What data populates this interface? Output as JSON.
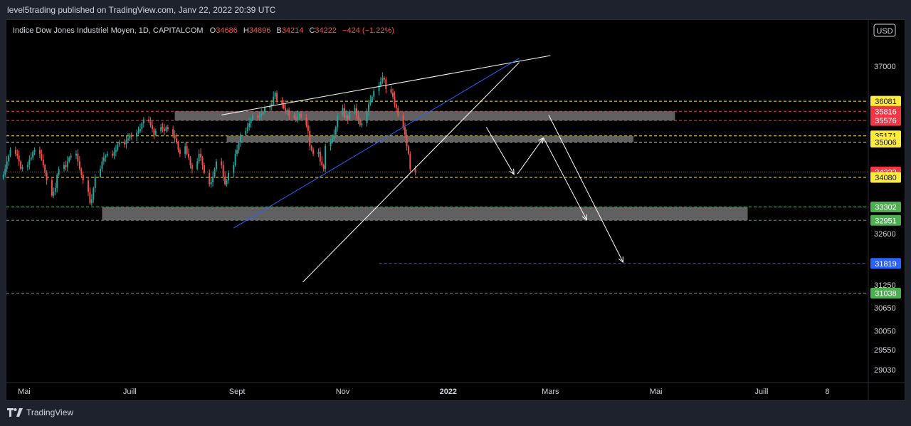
{
  "header": {
    "published": "level5trading published on TradingView.com, Janv 22, 2022 20:39 UTC"
  },
  "footer": {
    "brand": "TradingView",
    "logo_icon": "tradingview-logo-icon"
  },
  "colors": {
    "up": "#26a69a",
    "down": "#ef5350",
    "yellow": "#ffeb3b",
    "red": "#f23645",
    "green": "#4caf50",
    "blue": "#2962ff",
    "zone": "#808080"
  },
  "chart_data": {
    "type": "candlestick",
    "symbol": "Indice Dow Jones Industriel Moyen, 1D, CAPITALCOM",
    "ohlc": {
      "O": "34686",
      "H": "34896",
      "B": "34214",
      "C": "34222",
      "change": "−424 (−1.22%)"
    },
    "currency": "USD",
    "y_ticks": [
      "37000",
      "32600",
      "31250",
      "30650",
      "30050",
      "29550",
      "29030"
    ],
    "y_ticks_values": [
      37000,
      32600,
      31250,
      30650,
      30050,
      29550,
      29030
    ],
    "x_ticks": [
      "Mai",
      "Juill",
      "Sept",
      "Nov",
      "2022",
      "Mars",
      "Mai",
      "Juill",
      "8"
    ],
    "x_tick_dates": [
      "2021-05-01",
      "2021-07-01",
      "2021-09-01",
      "2021-11-01",
      "2022-01-01",
      "2022-03-01",
      "2022-05-01",
      "2022-07-01",
      "2022-08-08"
    ],
    "price_levels": [
      {
        "label": "36081",
        "value": 36081,
        "style": "dashed",
        "color": "#ffeb3b",
        "badge": "#ffeb3b",
        "start": "2021-04-01"
      },
      {
        "label": "35816",
        "value": 35816,
        "style": "dashed",
        "color": "#f23645",
        "badge": "#f23645",
        "start": "2021-04-01"
      },
      {
        "label": "35576",
        "value": 35576,
        "style": "dashed",
        "color": "#f23645",
        "badge": "#f23645",
        "start": "2021-04-01"
      },
      {
        "label": "35171",
        "value": 35171,
        "style": "dashed",
        "color": "#ffeb3b",
        "badge": "#ffeb3b",
        "start": "2021-04-01"
      },
      {
        "label": "35006",
        "value": 35006,
        "style": "dashed",
        "color": "#ffeb3b",
        "badge": "#ffeb3b",
        "start": "2021-04-01"
      },
      {
        "label": "34222",
        "value": 34222,
        "style": "dotted",
        "color": "#f23645",
        "badge": "#f23645",
        "start": "2021-04-01"
      },
      {
        "label": "34080",
        "value": 34080,
        "style": "dashed",
        "color": "#ffeb3b",
        "badge": "#ffeb3b",
        "start": "2021-04-01"
      },
      {
        "label": "33302",
        "value": 33302,
        "style": "dashed",
        "color": "#4caf50",
        "badge": "#4caf50",
        "start": "2021-04-01"
      },
      {
        "label": "32951",
        "value": 32951,
        "style": "dashed",
        "color": "#4caf50",
        "badge": "#4caf50",
        "start": "2021-04-01"
      },
      {
        "label": "31819",
        "value": 31819,
        "style": "dashed",
        "color": "#2962ff",
        "badge": "#2962ff",
        "start": "2021-11-22"
      },
      {
        "label": "31038",
        "value": 31038,
        "style": "dashed",
        "color": "#4caf50",
        "badge": "#4caf50",
        "start": "2021-04-01"
      }
    ],
    "zones": [
      {
        "from": "2021-07-27",
        "to": "2022-05-12",
        "low": 35576,
        "high": 35816
      },
      {
        "from": "2021-08-26",
        "to": "2022-04-18",
        "low": 35006,
        "high": 35171
      },
      {
        "from": "2021-06-15",
        "to": "2022-06-23",
        "low": 32951,
        "high": 33302
      }
    ],
    "trendlines": [
      {
        "color": "#ffffff",
        "points": [
          [
            "2021-08-23",
            35720
          ],
          [
            "2022-03-01",
            37280
          ]
        ]
      },
      {
        "color": "#2962ff",
        "points": [
          [
            "2021-08-30",
            32750
          ],
          [
            "2022-02-11",
            37210
          ]
        ]
      },
      {
        "color": "#ffffff",
        "points": [
          [
            "2021-10-09",
            31330
          ],
          [
            "2022-02-11",
            37100
          ]
        ]
      }
    ],
    "arrows": [
      [
        [
          "2022-01-23",
          35400
        ],
        [
          "2022-02-08",
          34160
        ]
      ],
      [
        [
          "2022-02-10",
          34170
        ],
        [
          "2022-02-25",
          35120
        ]
      ],
      [
        [
          "2022-02-25",
          35120
        ],
        [
          "2022-03-22",
          32960
        ]
      ],
      [
        [
          "2022-02-28",
          35720
        ],
        [
          "2022-04-12",
          31850
        ]
      ]
    ],
    "candles_start": "2021-04-01",
    "closes": [
      34200,
      34040,
      33900,
      33800,
      33900,
      34000,
      34100,
      34150,
      33950,
      33900,
      33850,
      34050,
      34150,
      34300,
      34500,
      34650,
      34800,
      34700,
      34650,
      34500,
      34300,
      34350,
      34400,
      34550,
      34600,
      34750,
      34800,
      34700,
      34550,
      34400,
      34200,
      34000,
      33600,
      33700,
      33800,
      34150,
      34300,
      34400,
      34350,
      34500,
      34600,
      34650,
      34700,
      34500,
      34300,
      34150,
      34000,
      33700,
      33400,
      33500,
      33800,
      34100,
      34300,
      34500,
      34600,
      34650,
      34700,
      34650,
      34750,
      34800,
      34950,
      35000,
      34950,
      35050,
      35100,
      35200,
      35150,
      35250,
      35300,
      35350,
      35500,
      35600,
      35550,
      35450,
      35350,
      35200,
      35300,
      35400,
      35350,
      35300,
      35400,
      35350,
      35200,
      35100,
      35000,
      34800,
      34700,
      34900,
      34700,
      34600,
      34400,
      34300,
      34500,
      34700,
      34600,
      34400,
      34200,
      33900,
      33950,
      34100,
      34300,
      34500,
      34400,
      34100,
      33900,
      34000,
      34200,
      34400,
      34700,
      34800,
      35000,
      35200,
      35300,
      35400,
      35500,
      35600,
      35700,
      35650,
      35700,
      35750,
      35800,
      35900,
      35950,
      36000,
      36200,
      36300,
      36100,
      36000,
      35900,
      35800,
      35850,
      35700,
      35650,
      35600,
      35700,
      35750,
      35650,
      35450,
      35300,
      34900,
      34800,
      34700,
      34750,
      34500,
      34400,
      34300,
      34900,
      35000,
      35100,
      35200,
      35400,
      35700,
      35900,
      35650,
      35700,
      35600,
      35800,
      35900,
      35700,
      35600,
      35450,
      35500,
      35800,
      36000,
      36100,
      36200,
      36350,
      36500,
      36600,
      36700,
      36650,
      36400,
      36300,
      36200,
      36000,
      35900,
      35700,
      35400,
      35200,
      34900,
      34700,
      34300,
      34222
    ]
  }
}
